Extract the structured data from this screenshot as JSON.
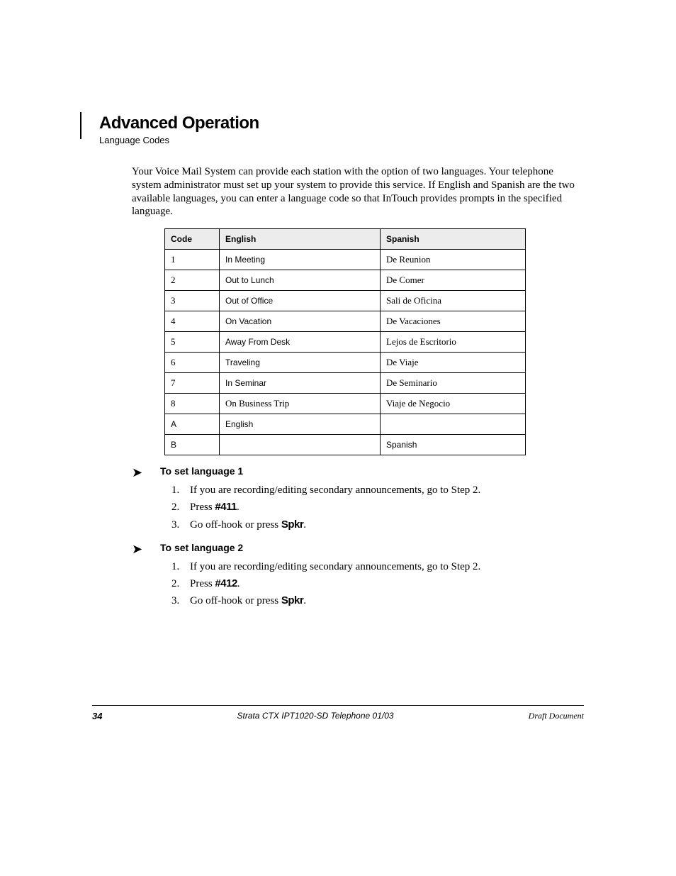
{
  "header": {
    "chapter_label": "Advanced Operation",
    "subhead": "Language Codes"
  },
  "intro_para": "Your Voice Mail System can provide each station with the option of two languages. Your telephone system administrator must set up your system to provide this service. If English and Spanish are the two available languages, you can enter a language code so that InTouch provides prompts in the specified language.",
  "table": {
    "columns": [
      "Code",
      "English",
      "Spanish"
    ],
    "rows": [
      [
        {
          "v": "1",
          "f": "Times"
        },
        {
          "v": "In Meeting",
          "f": "Arial"
        },
        {
          "v": "De Reunion",
          "f": "Times"
        }
      ],
      [
        {
          "v": "2",
          "f": "Times"
        },
        {
          "v": "Out to Lunch",
          "f": "Arial"
        },
        {
          "v": "De Comer",
          "f": "Times"
        }
      ],
      [
        {
          "v": "3",
          "f": "Times"
        },
        {
          "v": "Out of Office",
          "f": "Arial"
        },
        {
          "v": "Sali de Oficina",
          "f": "Times"
        }
      ],
      [
        {
          "v": "4",
          "f": "Times"
        },
        {
          "v": "On Vacation",
          "f": "Arial"
        },
        {
          "v": "De Vacaciones",
          "f": "Times"
        }
      ],
      [
        {
          "v": "5",
          "f": "Times"
        },
        {
          "v": "Away From Desk",
          "f": "Arial"
        },
        {
          "v": "Lejos de Escritorio",
          "f": "Times"
        }
      ],
      [
        {
          "v": "6",
          "f": "Times"
        },
        {
          "v": "Traveling",
          "f": "Arial"
        },
        {
          "v": "De Viaje",
          "f": "Times"
        }
      ],
      [
        {
          "v": "7",
          "f": "Times"
        },
        {
          "v": "In Seminar",
          "f": "Arial"
        },
        {
          "v": "De Seminario",
          "f": "Times"
        }
      ],
      [
        {
          "v": "8",
          "f": "Times"
        },
        {
          "v": "On Business Trip",
          "f": "Times"
        },
        {
          "v": "Viaje de Negocio",
          "f": "Times"
        }
      ],
      [
        {
          "v": "A",
          "f": "Arial"
        },
        {
          "v": "English",
          "f": "Arial"
        },
        {
          "v": "",
          "f": "Times"
        }
      ],
      [
        {
          "v": "B",
          "f": "Arial"
        },
        {
          "v": "",
          "f": "Times"
        },
        {
          "v": "Spanish",
          "f": "Arial"
        }
      ]
    ]
  },
  "procedures": [
    {
      "title": "To set language 1",
      "steps": [
        {
          "pre": "If you are recording/editing secondary announcements, go to",
          "post": "."
        },
        {
          "pre2a": "Press ",
          "key": "#411",
          "post2": "."
        },
        {
          "pre3a": "Go off-hook or press ",
          "key3": "Spkr",
          "post3": "."
        }
      ],
      "step2_label": "Step 2",
      "numbers": [
        "1.",
        "2.",
        "3."
      ]
    },
    {
      "title": "To set language 2",
      "steps": [
        {
          "pre": "If you are recording/editing secondary announcements, go to",
          "post": "."
        },
        {
          "pre2a": "Press ",
          "key": "#412",
          "post2": "."
        },
        {
          "pre3a": "Go off-hook or press ",
          "key3": "Spkr",
          "post3": "."
        }
      ],
      "step2_label": "Step 2",
      "numbers": [
        "1.",
        "2.",
        "3."
      ]
    }
  ],
  "footer": {
    "page": "34",
    "center": "Strata CTX IPT1020-SD Telephone     01/03",
    "right": "Draft Document"
  }
}
